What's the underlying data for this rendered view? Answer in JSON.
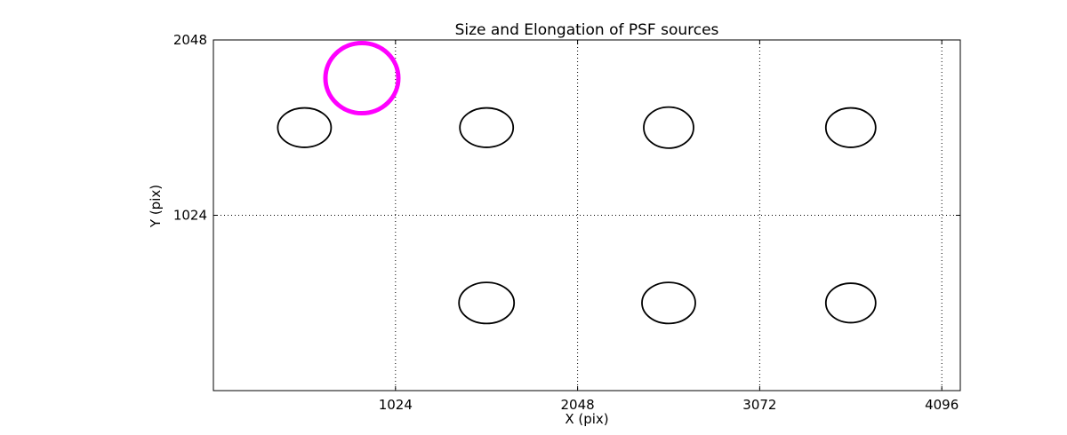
{
  "chart_data": {
    "type": "scatter",
    "title": "Size and Elongation of PSF sources",
    "xlabel": "X (pix)",
    "ylabel": "Y (pix)",
    "xlim": [
      0,
      4200
    ],
    "ylim": [
      0,
      2048
    ],
    "xticks": [
      1024,
      2048,
      3072,
      4096
    ],
    "yticks": [
      1024,
      2048
    ],
    "grid": "dotted",
    "background": "#ffffff",
    "axis_color": "#000000",
    "highlight_color": "#ff00ff",
    "ellipses": [
      {
        "name": "psf-ellipse",
        "x": 512,
        "y": 1536,
        "rx": 150,
        "ry": 115,
        "color": "#000000",
        "stroke_width": 1.8
      },
      {
        "name": "psf-ellipse",
        "x": 1536,
        "y": 1536,
        "rx": 150,
        "ry": 115,
        "color": "#000000",
        "stroke_width": 1.8
      },
      {
        "name": "psf-ellipse",
        "x": 2560,
        "y": 1536,
        "rx": 140,
        "ry": 120,
        "color": "#000000",
        "stroke_width": 1.8
      },
      {
        "name": "psf-ellipse",
        "x": 3584,
        "y": 1536,
        "rx": 140,
        "ry": 115,
        "color": "#000000",
        "stroke_width": 1.8
      },
      {
        "name": "psf-ellipse",
        "x": 1536,
        "y": 512,
        "rx": 155,
        "ry": 120,
        "color": "#000000",
        "stroke_width": 1.8
      },
      {
        "name": "psf-ellipse",
        "x": 2560,
        "y": 512,
        "rx": 150,
        "ry": 120,
        "color": "#000000",
        "stroke_width": 1.8
      },
      {
        "name": "psf-ellipse",
        "x": 3584,
        "y": 512,
        "rx": 140,
        "ry": 115,
        "color": "#000000",
        "stroke_width": 1.8
      },
      {
        "name": "highlighted-psf-ellipse",
        "x": 835,
        "y": 1825,
        "rx": 205,
        "ry": 205,
        "color": "#ff00ff",
        "stroke_width": 5
      }
    ]
  }
}
